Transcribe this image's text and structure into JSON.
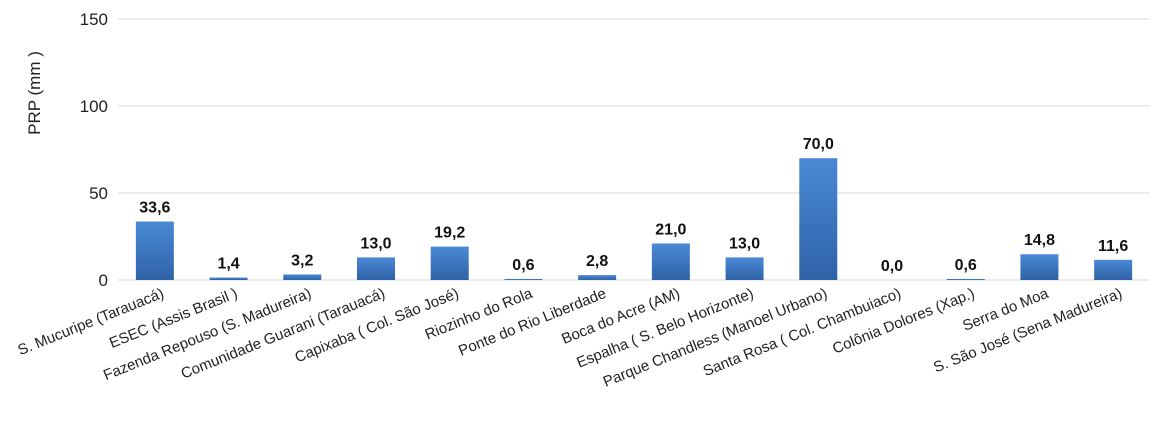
{
  "chart_data": {
    "type": "bar",
    "title": "",
    "xlabel": "",
    "ylabel": "PRP (mm )",
    "ylim": [
      0,
      150
    ],
    "yticks": [
      "0",
      "50",
      "100",
      "150"
    ],
    "grid": true,
    "categories": [
      "S. Mucuripe (Tarauacá)",
      "ESEC (Assis Brasil )",
      "Fazenda Repouso (S. Madureira)",
      "Comunidade Guarani (Tarauacá)",
      "Capixaba ( Col. São José)",
      "Riozinho do Rola",
      "Ponte do Rio Liberdade",
      "Boca do Acre (AM)",
      "Espalha ( S. Belo Horizonte)",
      "Parque Chandless (Manoel Urbano)",
      "Santa Rosa ( Col. Chambuiaco)",
      "Colônia Dolores (Xap.)",
      "Serra do Moa",
      "S. São José (Sena Madureira)"
    ],
    "values": [
      33.6,
      1.4,
      3.2,
      13.0,
      19.2,
      0.6,
      2.8,
      21.0,
      13.0,
      70.0,
      0.0,
      0.6,
      14.8,
      11.6
    ],
    "data_labels": [
      "33,6",
      "1,4",
      "3,2",
      "13,0",
      "19,2",
      "0,6",
      "2,8",
      "21,0",
      "13,0",
      "70,0",
      "0,0",
      "0,6",
      "14,8",
      "11,6"
    ],
    "colors": {
      "bar_top": "#4a89d6",
      "bar_bottom": "#2f62a6",
      "grid": "#d9d9d9"
    }
  }
}
